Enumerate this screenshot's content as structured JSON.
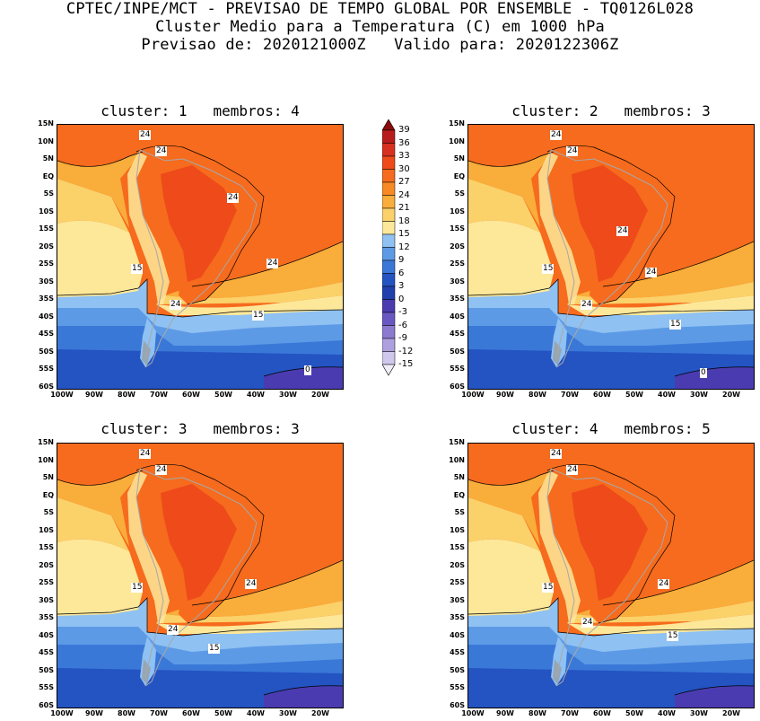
{
  "header": {
    "line1": "CPTEC/INPE/MCT - PREVISAO DE TEMPO GLOBAL POR ENSEMBLE - TQ0126L028",
    "line2": "Cluster Medio para a Temperatura (C) em 1000 hPa",
    "line3": "Previsao de: 2020121000Z   Valido para: 2020122306Z"
  },
  "lat_labels": [
    "15N",
    "10N",
    "5N",
    "EQ",
    "5S",
    "10S",
    "15S",
    "20S",
    "25S",
    "30S",
    "35S",
    "40S",
    "45S",
    "50S",
    "55S",
    "60S"
  ],
  "lon_labels": [
    "100W",
    "90W",
    "80W",
    "70W",
    "60W",
    "50W",
    "40W",
    "30W",
    "20W"
  ],
  "colorbar": {
    "labels": [
      "39",
      "36",
      "33",
      "30",
      "27",
      "24",
      "21",
      "18",
      "15",
      "12",
      "9",
      "6",
      "3",
      "0",
      "-3",
      "-6",
      "-9",
      "-12",
      "-15"
    ],
    "colors": [
      "#8b0c0c",
      "#b81c1c",
      "#d8301e",
      "#ee4a1a",
      "#f66b1d",
      "#f88a26",
      "#f9ad3a",
      "#fbd16a",
      "#fde89a",
      "#8fc1f2",
      "#5d9ae6",
      "#3a78d8",
      "#2453c2",
      "#2040ae",
      "#4a3cb0",
      "#6a58c2",
      "#8c7ad0",
      "#aea0de",
      "#cfc8ec"
    ]
  },
  "panels": [
    {
      "title": "cluster: 1   membros: 4",
      "labels": [
        "24",
        "24",
        "24",
        "24",
        "15",
        "24",
        "15",
        "0"
      ]
    },
    {
      "title": "cluster: 2   membros: 3",
      "labels": [
        "24",
        "24",
        "24",
        "24",
        "15",
        "24",
        "15",
        "0"
      ]
    },
    {
      "title": "cluster: 3   membros: 3",
      "labels": [
        "24",
        "24",
        "24",
        "15",
        "24",
        "15"
      ]
    },
    {
      "title": "cluster: 4   membros: 5",
      "labels": [
        "24",
        "24",
        "24",
        "15",
        "24",
        "15"
      ]
    }
  ]
}
